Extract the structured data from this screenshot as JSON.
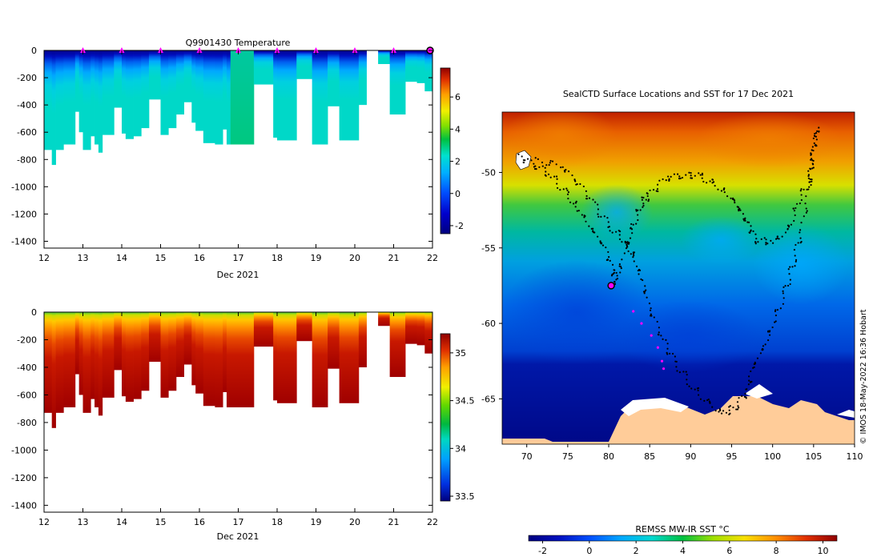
{
  "chart_data": [
    {
      "type": "heatmap",
      "id": "temperature",
      "title": "Q9901430  Temperature",
      "xlabel": "Dec 2021",
      "ylabel": "",
      "xlim": [
        12,
        22
      ],
      "ylim": [
        -1450,
        0
      ],
      "x_ticks": [
        "12",
        "13",
        "14",
        "15",
        "16",
        "17",
        "18",
        "19",
        "20",
        "21",
        "22"
      ],
      "y_ticks": [
        "0",
        "-200",
        "-400",
        "-600",
        "-800",
        "-1000",
        "-1200",
        "-1400"
      ],
      "colorbar": {
        "min": -2.5,
        "max": 7.8,
        "ticks": [
          "6",
          "4",
          "2",
          "0",
          "-2"
        ],
        "tick_values": [
          6,
          4,
          2,
          0,
          -2
        ]
      },
      "profile_markers_x": [
        13,
        14,
        15,
        16,
        17,
        18,
        19,
        20,
        21
      ],
      "current_marker_x": 22,
      "profiles": [
        {
          "x0": 12.0,
          "x1": 12.2,
          "depth": 730
        },
        {
          "x0": 12.2,
          "x1": 12.3,
          "depth": 840
        },
        {
          "x0": 12.3,
          "x1": 12.5,
          "depth": 730
        },
        {
          "x0": 12.5,
          "x1": 12.8,
          "depth": 690
        },
        {
          "x0": 12.8,
          "x1": 12.9,
          "depth": 450
        },
        {
          "x0": 12.9,
          "x1": 13.0,
          "depth": 600
        },
        {
          "x0": 13.0,
          "x1": 13.2,
          "depth": 730
        },
        {
          "x0": 13.2,
          "x1": 13.3,
          "depth": 630
        },
        {
          "x0": 13.3,
          "x1": 13.4,
          "depth": 690
        },
        {
          "x0": 13.4,
          "x1": 13.5,
          "depth": 750
        },
        {
          "x0": 13.5,
          "x1": 13.8,
          "depth": 620
        },
        {
          "x0": 13.8,
          "x1": 14.0,
          "depth": 420
        },
        {
          "x0": 14.0,
          "x1": 14.1,
          "depth": 610
        },
        {
          "x0": 14.1,
          "x1": 14.3,
          "depth": 650
        },
        {
          "x0": 14.3,
          "x1": 14.5,
          "depth": 630
        },
        {
          "x0": 14.5,
          "x1": 14.7,
          "depth": 570
        },
        {
          "x0": 14.7,
          "x1": 15.0,
          "depth": 360
        },
        {
          "x0": 15.0,
          "x1": 15.2,
          "depth": 620
        },
        {
          "x0": 15.2,
          "x1": 15.4,
          "depth": 570
        },
        {
          "x0": 15.4,
          "x1": 15.6,
          "depth": 470
        },
        {
          "x0": 15.6,
          "x1": 15.8,
          "depth": 380
        },
        {
          "x0": 15.8,
          "x1": 15.9,
          "depth": 530
        },
        {
          "x0": 15.9,
          "x1": 16.1,
          "depth": 590
        },
        {
          "x0": 16.1,
          "x1": 16.4,
          "depth": 680
        },
        {
          "x0": 16.4,
          "x1": 16.6,
          "depth": 690
        },
        {
          "x0": 16.6,
          "x1": 16.7,
          "depth": 580
        },
        {
          "x0": 16.7,
          "x1": 16.8,
          "depth": 690
        },
        {
          "x0": 16.8,
          "x1": 17.4,
          "depth": 690
        },
        {
          "x0": 17.4,
          "x1": 17.9,
          "depth": 250
        },
        {
          "x0": 17.9,
          "x1": 18.0,
          "depth": 640
        },
        {
          "x0": 18.0,
          "x1": 18.5,
          "depth": 660
        },
        {
          "x0": 18.5,
          "x1": 18.9,
          "depth": 210
        },
        {
          "x0": 18.9,
          "x1": 19.3,
          "depth": 690
        },
        {
          "x0": 19.3,
          "x1": 19.6,
          "depth": 410
        },
        {
          "x0": 19.6,
          "x1": 20.1,
          "depth": 660
        },
        {
          "x0": 20.1,
          "x1": 20.3,
          "depth": 400
        },
        {
          "x0": 20.6,
          "x1": 20.9,
          "depth": 100
        },
        {
          "x0": 20.9,
          "x1": 21.3,
          "depth": 470
        },
        {
          "x0": 21.3,
          "x1": 21.6,
          "depth": 230
        },
        {
          "x0": 21.6,
          "x1": 21.8,
          "depth": 240
        },
        {
          "x0": 21.8,
          "x1": 22.05,
          "depth": 300
        }
      ]
    },
    {
      "type": "heatmap",
      "id": "salinity",
      "title": "",
      "xlabel": "Dec 2021",
      "ylabel": "",
      "xlim": [
        12,
        22
      ],
      "ylim": [
        -1450,
        0
      ],
      "x_ticks": [
        "12",
        "13",
        "14",
        "15",
        "16",
        "17",
        "18",
        "19",
        "20",
        "21",
        "22"
      ],
      "y_ticks": [
        "0",
        "-200",
        "-400",
        "-600",
        "-800",
        "-1000",
        "-1200",
        "-1400"
      ],
      "colorbar": {
        "min": 33.45,
        "max": 35.2,
        "ticks": [
          "35",
          "34.5",
          "34",
          "33.5"
        ],
        "tick_values": [
          35,
          34.5,
          34,
          33.5
        ]
      }
    },
    {
      "type": "heatmap",
      "id": "sst-map",
      "title": "SealCTD Surface Locations and SST for 17 Dec 2021",
      "xlabel": "",
      "ylabel": "",
      "xlim": [
        67,
        110
      ],
      "ylim": [
        -68,
        -46
      ],
      "x_ticks": [
        "70",
        "75",
        "80",
        "85",
        "90",
        "95",
        "100",
        "105",
        "110"
      ],
      "y_ticks": [
        "-50",
        "-55",
        "-60",
        "-65"
      ],
      "colorbar": {
        "label": "REMSS MW-IR SST °C",
        "min": -2.6,
        "max": 10.6,
        "ticks": [
          "-2",
          "0",
          "2",
          "4",
          "6",
          "8",
          "10"
        ]
      },
      "track_recent": [
        [
          83.0,
          -59.2
        ],
        [
          84.0,
          -60.0
        ],
        [
          85.2,
          -60.8
        ],
        [
          86.0,
          -61.6
        ],
        [
          86.5,
          -62.5
        ],
        [
          86.7,
          -63.0
        ]
      ],
      "current_position": [
        80.3,
        -57.5
      ],
      "credit": "© IMOS 18-May-2022 16:36 Hobart"
    }
  ]
}
